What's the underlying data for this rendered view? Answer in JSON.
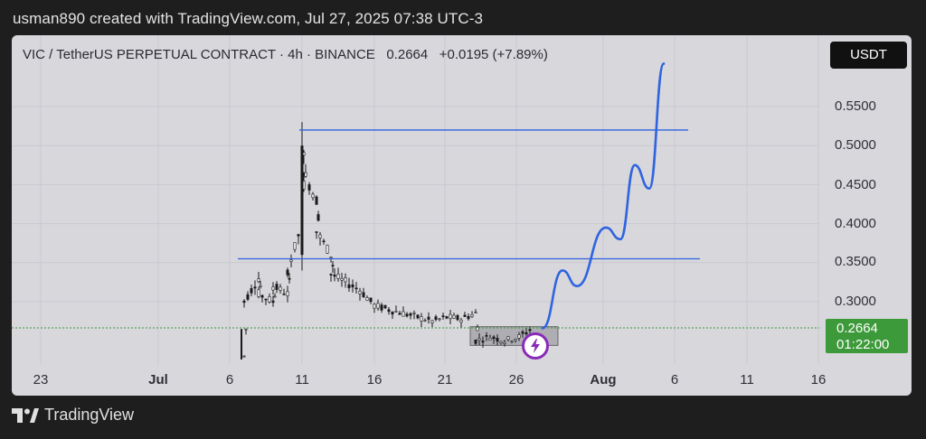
{
  "header": {
    "credit": "usman890 created with TradingView.com, Jul 27, 2025 07:38 UTC-3"
  },
  "chart_header": {
    "symbol": "VIC / TetherUS PERPETUAL CONTRACT · 4h · BINANCE",
    "last": "0.2664",
    "change": "+0.0195 (+7.89%)",
    "currency_button": "USDT"
  },
  "price_tag": {
    "price": "0.2664",
    "countdown": "01:22:00"
  },
  "footer": {
    "brand": "TradingView"
  },
  "colors": {
    "background": "#1e1e1e",
    "panel": "#d7d7dc",
    "level_line": "#2f63e0",
    "projection": "#2f63e0",
    "price_tag": "#3d9a3a",
    "candle": "#1a1a1a",
    "badge": "#8a2bb8"
  },
  "chart_data": {
    "type": "candlestick",
    "timeframe": "4h",
    "x_ticks": [
      "23",
      "Jul",
      "6",
      "11",
      "16",
      "21",
      "26",
      "Aug",
      "6",
      "11",
      "16"
    ],
    "y_ticks": [
      "0.5500",
      "0.5000",
      "0.4500",
      "0.4000",
      "0.3500",
      "0.3000"
    ],
    "ylim": [
      0.225,
      0.62
    ],
    "price_series": [
      {
        "date": "Jul 7",
        "value": 0.23
      },
      {
        "date": "Jul 7",
        "value": 0.3
      },
      {
        "date": "Jul 8",
        "value": 0.33
      },
      {
        "date": "Jul 8",
        "value": 0.31
      },
      {
        "date": "Jul 9",
        "value": 0.3
      },
      {
        "date": "Jul 9",
        "value": 0.32
      },
      {
        "date": "Jul 10",
        "value": 0.31
      },
      {
        "date": "Jul 10",
        "value": 0.34
      },
      {
        "date": "Jul 11",
        "value": 0.4
      },
      {
        "date": "Jul 11",
        "value": 0.5
      },
      {
        "date": "Jul 11",
        "value": 0.47
      },
      {
        "date": "Jul 12",
        "value": 0.43
      },
      {
        "date": "Jul 12",
        "value": 0.39
      },
      {
        "date": "Jul 13",
        "value": 0.36
      },
      {
        "date": "Jul 13",
        "value": 0.335
      },
      {
        "date": "Jul 14",
        "value": 0.325
      },
      {
        "date": "Jul 15",
        "value": 0.315
      },
      {
        "date": "Jul 16",
        "value": 0.295
      },
      {
        "date": "Jul 17",
        "value": 0.29
      },
      {
        "date": "Jul 18",
        "value": 0.285
      },
      {
        "date": "Jul 19",
        "value": 0.28
      },
      {
        "date": "Jul 20",
        "value": 0.275
      },
      {
        "date": "Jul 21",
        "value": 0.28
      },
      {
        "date": "Jul 22",
        "value": 0.278
      },
      {
        "date": "Jul 23",
        "value": 0.285
      },
      {
        "date": "Jul 23",
        "value": 0.25
      },
      {
        "date": "Jul 24",
        "value": 0.255
      },
      {
        "date": "Jul 25",
        "value": 0.25
      },
      {
        "date": "Jul 26",
        "value": 0.255
      },
      {
        "date": "Jul 27",
        "value": 0.2664
      }
    ],
    "levels": [
      0.52,
      0.355
    ],
    "accumulation_zone": {
      "from": "Jul 23",
      "to": "Jul 28",
      "low": 0.244,
      "high": 0.268
    },
    "projection_path": [
      {
        "date": "Jul 27",
        "value": 0.266
      },
      {
        "date": "Jul 29",
        "value": 0.34
      },
      {
        "date": "Jul 30",
        "value": 0.32
      },
      {
        "date": "Aug 1",
        "value": 0.395
      },
      {
        "date": "Aug 2",
        "value": 0.38
      },
      {
        "date": "Aug 3",
        "value": 0.475
      },
      {
        "date": "Aug 4",
        "value": 0.445
      },
      {
        "date": "Aug 5",
        "value": 0.605
      }
    ]
  }
}
